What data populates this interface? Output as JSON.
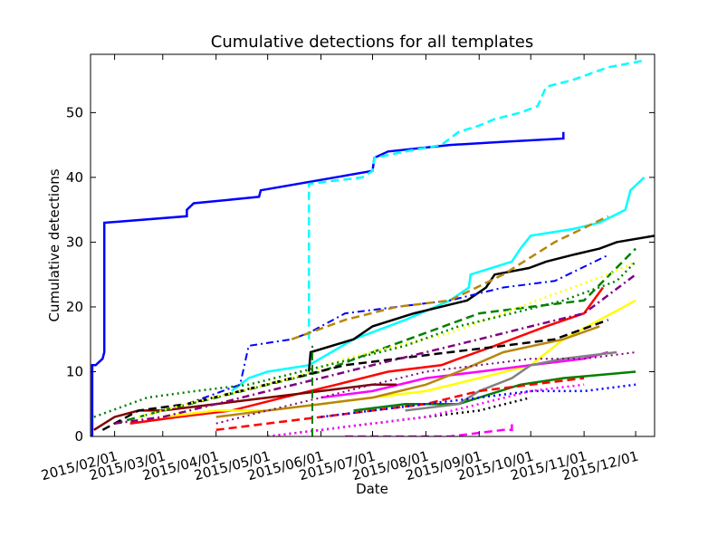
{
  "chart_data": {
    "type": "line",
    "title": "Cumulative detections for all templates",
    "xlabel": "Date",
    "ylabel": "Cumulative detections",
    "x_is_date": true,
    "xlim": [
      "2015-01-18",
      "2015-12-12"
    ],
    "ylim": [
      0,
      59
    ],
    "x_ticks": [
      "2015/02/01",
      "2015/03/01",
      "2015/04/01",
      "2015/05/01",
      "2015/06/01",
      "2015/07/01",
      "2015/08/01",
      "2015/09/01",
      "2015/10/01",
      "2015/11/01",
      "2015/12/01"
    ],
    "y_ticks": [
      0,
      10,
      20,
      30,
      40,
      50
    ],
    "grid": false,
    "legend": "none",
    "series": [
      {
        "color": "#0000ff",
        "dash": "solid",
        "width": 2.5,
        "x": [
          "2015-01-19",
          "2015-01-19",
          "2015-01-21",
          "2015-01-25",
          "2015-01-26",
          "2015-01-26",
          "2015-03-15",
          "2015-03-15",
          "2015-03-19",
          "2015-04-26",
          "2015-04-27",
          "2015-07-01",
          "2015-07-02",
          "2015-07-10",
          "2015-08-15",
          "2015-09-15",
          "2015-10-20",
          "2015-10-20"
        ],
        "y": [
          0,
          11,
          11,
          12,
          13,
          33,
          34,
          35,
          36,
          37,
          38,
          41,
          43,
          44,
          45,
          45.5,
          46,
          47
        ]
      },
      {
        "color": "#00ffff",
        "dash": "dashed",
        "width": 2.5,
        "x": [
          "2015-05-25",
          "2015-05-25",
          "2015-06-25",
          "2015-07-01",
          "2015-07-02",
          "2015-07-20",
          "2015-08-10",
          "2015-08-20",
          "2015-09-01",
          "2015-09-10",
          "2015-09-25",
          "2015-10-05",
          "2015-10-10",
          "2015-10-25",
          "2015-11-15",
          "2015-12-05"
        ],
        "y": [
          15,
          39,
          40,
          41,
          43,
          44,
          45,
          47,
          48,
          49,
          50,
          51,
          54,
          55,
          57,
          58
        ]
      },
      {
        "color": "#00ffff",
        "dash": "solid",
        "width": 2.5,
        "x": [
          "2015-04-10",
          "2015-04-20",
          "2015-05-01",
          "2015-05-25",
          "2015-06-20",
          "2015-07-20",
          "2015-08-15",
          "2015-08-26",
          "2015-08-27",
          "2015-09-20",
          "2015-09-25",
          "2015-10-01",
          "2015-10-25",
          "2015-11-10",
          "2015-11-25",
          "2015-11-28",
          "2015-12-06"
        ],
        "y": [
          7,
          9,
          10,
          11,
          15,
          18,
          21,
          23,
          25,
          27,
          29,
          31,
          32,
          33,
          35,
          38,
          40
        ]
      },
      {
        "color": "#000000",
        "dash": "solid",
        "width": 2.5,
        "x": [
          "2015-05-25",
          "2015-05-26",
          "2015-06-20",
          "2015-07-01",
          "2015-07-25",
          "2015-08-25",
          "2015-09-05",
          "2015-09-10",
          "2015-09-30",
          "2015-10-10",
          "2015-10-25",
          "2015-11-10",
          "2015-11-20",
          "2015-12-12"
        ],
        "y": [
          10,
          13,
          15,
          17,
          19,
          21,
          23,
          25,
          26,
          27,
          28,
          29,
          30,
          31
        ]
      },
      {
        "color": "#ff0000",
        "dash": "solid",
        "width": 2.5,
        "x": [
          "2015-02-10",
          "2015-03-10",
          "2015-04-10",
          "2015-05-10",
          "2015-06-10",
          "2015-07-10",
          "2015-08-10",
          "2015-08-20",
          "2015-09-10",
          "2015-10-10",
          "2015-11-01",
          "2015-11-12"
        ],
        "y": [
          2,
          3,
          4,
          6,
          8,
          10,
          11,
          12,
          14,
          17,
          19,
          23
        ]
      },
      {
        "color": "#ffff00",
        "dash": "solid",
        "width": 2.5,
        "x": [
          "2015-03-01",
          "2015-04-01",
          "2015-05-01",
          "2015-06-01",
          "2015-07-01",
          "2015-08-01",
          "2015-09-01",
          "2015-10-01",
          "2015-10-20",
          "2015-11-10",
          "2015-12-01"
        ],
        "y": [
          3,
          4,
          4,
          5,
          6,
          7,
          9,
          11,
          15,
          18,
          21
        ]
      },
      {
        "color": "#ff00ff",
        "dash": "solid",
        "width": 2.5,
        "x": [
          "2015-06-01",
          "2015-07-01",
          "2015-08-01",
          "2015-09-01",
          "2015-10-01",
          "2015-11-01",
          "2015-11-15"
        ],
        "y": [
          6,
          7,
          9,
          10,
          11,
          12,
          13
        ]
      },
      {
        "color": "#008000",
        "dash": "solid",
        "width": 2.5,
        "x": [
          "2015-06-20",
          "2015-07-20",
          "2015-08-20",
          "2015-09-01",
          "2015-09-25",
          "2015-10-20",
          "2015-12-01"
        ],
        "y": [
          4,
          5,
          5,
          6,
          8,
          9,
          10
        ]
      },
      {
        "color": "#808080",
        "dash": "solid",
        "width": 2.5,
        "x": [
          "2015-07-20",
          "2015-08-20",
          "2015-09-01",
          "2015-09-20",
          "2015-10-01",
          "2015-10-20",
          "2015-11-20"
        ],
        "y": [
          4,
          5,
          7,
          9,
          11,
          12,
          13
        ]
      },
      {
        "color": "#800000",
        "dash": "solid",
        "width": 2.5,
        "x": [
          "2015-01-20",
          "2015-02-01",
          "2015-02-15",
          "2015-03-01",
          "2015-04-01",
          "2015-05-01",
          "2015-06-01",
          "2015-07-01",
          "2015-07-15"
        ],
        "y": [
          1,
          3,
          4,
          4,
          5,
          6,
          7,
          8,
          8
        ]
      },
      {
        "color": "#b8860b",
        "dash": "solid",
        "width": 2.5,
        "x": [
          "2015-04-01",
          "2015-05-01",
          "2015-06-01",
          "2015-07-01",
          "2015-08-01",
          "2015-08-20",
          "2015-09-15",
          "2015-10-20",
          "2015-11-10"
        ],
        "y": [
          3,
          4,
          5,
          6,
          8,
          10,
          13,
          15,
          17
        ]
      },
      {
        "color": "#ff00ff",
        "dash": "dashed",
        "width": 2.5,
        "x": [
          "2015-06-15",
          "2015-07-15",
          "2015-08-15",
          "2015-09-15",
          "2015-09-20",
          "2015-09-20"
        ],
        "y": [
          0,
          0,
          0,
          1,
          1,
          2
        ]
      },
      {
        "color": "#0000ff",
        "dash": "dashdot",
        "width": 2,
        "x": [
          "2015-03-15",
          "2015-04-15",
          "2015-04-20",
          "2015-05-15",
          "2015-05-25",
          "2015-06-15",
          "2015-07-15",
          "2015-08-15",
          "2015-09-15",
          "2015-10-15",
          "2015-11-15"
        ],
        "y": [
          5,
          8,
          14,
          15,
          16,
          19,
          20,
          21,
          23,
          24,
          28
        ]
      },
      {
        "color": "#b8860b",
        "dash": "dashed",
        "width": 2.5,
        "x": [
          "2015-05-15",
          "2015-06-15",
          "2015-07-15",
          "2015-08-15",
          "2015-09-15",
          "2015-10-15",
          "2015-11-15"
        ],
        "y": [
          15,
          18,
          20,
          21,
          25,
          30,
          34
        ]
      },
      {
        "color": "#008000",
        "dash": "dashed",
        "width": 2.5,
        "x": [
          "2015-02-01",
          "2015-03-01",
          "2015-04-01",
          "2015-05-01",
          "2015-06-01",
          "2015-07-01",
          "2015-08-01",
          "2015-09-01",
          "2015-10-01",
          "2015-11-01",
          "2015-12-01"
        ],
        "y": [
          2,
          4,
          6,
          8,
          10,
          13,
          16,
          19,
          20,
          21,
          29
        ]
      },
      {
        "color": "#000000",
        "dash": "dashed",
        "width": 2.5,
        "x": [
          "2015-01-25",
          "2015-02-15",
          "2015-03-15",
          "2015-04-15",
          "2015-05-15",
          "2015-06-15",
          "2015-07-15",
          "2015-08-15",
          "2015-09-15",
          "2015-10-15",
          "2015-11-15"
        ],
        "y": [
          1,
          4,
          5,
          7,
          9,
          11,
          12,
          13,
          14,
          15,
          18
        ]
      },
      {
        "color": "#ff0000",
        "dash": "dashed",
        "width": 2.5,
        "x": [
          "2015-04-01",
          "2015-05-01",
          "2015-06-01",
          "2015-07-01",
          "2015-08-01",
          "2015-09-01",
          "2015-10-01",
          "2015-11-01"
        ],
        "y": [
          1,
          2,
          3,
          4,
          5,
          7,
          8,
          9
        ]
      },
      {
        "color": "#800080",
        "dash": "dashdot",
        "width": 2.5,
        "x": [
          "2015-02-01",
          "2015-03-01",
          "2015-04-01",
          "2015-05-01",
          "2015-06-01",
          "2015-07-01",
          "2015-08-01",
          "2015-09-01",
          "2015-10-01",
          "2015-11-01",
          "2015-12-01"
        ],
        "y": [
          2,
          3,
          5,
          7,
          9,
          11,
          13,
          15,
          17,
          19,
          25
        ]
      },
      {
        "color": "#ffff00",
        "dash": "dotted",
        "width": 2.5,
        "x": [
          "2015-02-15",
          "2015-03-15",
          "2015-04-15",
          "2015-05-15",
          "2015-06-15",
          "2015-07-15",
          "2015-08-15",
          "2015-09-15",
          "2015-10-15",
          "2015-11-15",
          "2015-12-01"
        ],
        "y": [
          3,
          5,
          7,
          9,
          12,
          14,
          16,
          19,
          22,
          25,
          27
        ]
      },
      {
        "color": "#008000",
        "dash": "dotted",
        "width": 2.5,
        "x": [
          "2015-01-20",
          "2015-02-20",
          "2015-03-20",
          "2015-04-20",
          "2015-05-20",
          "2015-06-20",
          "2015-07-20",
          "2015-08-20",
          "2015-09-20",
          "2015-10-20",
          "2015-11-20",
          "2015-12-01"
        ],
        "y": [
          3,
          6,
          7,
          8,
          10,
          12,
          14,
          17,
          19,
          21,
          24,
          27
        ]
      },
      {
        "color": "#0000ff",
        "dash": "dotted",
        "width": 2.5,
        "x": [
          "2015-06-01",
          "2015-07-01",
          "2015-08-01",
          "2015-09-01",
          "2015-10-01",
          "2015-11-01",
          "2015-12-01"
        ],
        "y": [
          3,
          4,
          5,
          6,
          7,
          7,
          8
        ]
      },
      {
        "color": "#000000",
        "dash": "dotted",
        "width": 2.5,
        "x": [
          "2015-05-01",
          "2015-06-01",
          "2015-07-01",
          "2015-08-01",
          "2015-09-01",
          "2015-10-01"
        ],
        "y": [
          0,
          1,
          2,
          3,
          4,
          6
        ]
      },
      {
        "color": "#800080",
        "dash": "dotted",
        "width": 2,
        "x": [
          "2015-04-01",
          "2015-05-01",
          "2015-06-01",
          "2015-07-01",
          "2015-08-01",
          "2015-09-01",
          "2015-10-01",
          "2015-11-01",
          "2015-12-01"
        ],
        "y": [
          2,
          4,
          6,
          8,
          10,
          11,
          12,
          12,
          13
        ]
      },
      {
        "color": "#ff00ff",
        "dash": "dotted",
        "width": 2.5,
        "x": [
          "2015-05-01",
          "2015-06-01",
          "2015-07-01",
          "2015-08-01",
          "2015-09-01",
          "2015-10-01",
          "2015-11-01"
        ],
        "y": [
          0,
          1,
          2,
          3,
          5,
          7,
          8
        ]
      },
      {
        "color": "#008000",
        "dash": "dashed",
        "width": 2,
        "x": [
          "2015-05-27",
          "2015-05-27"
        ],
        "y": [
          0,
          14
        ]
      }
    ]
  }
}
